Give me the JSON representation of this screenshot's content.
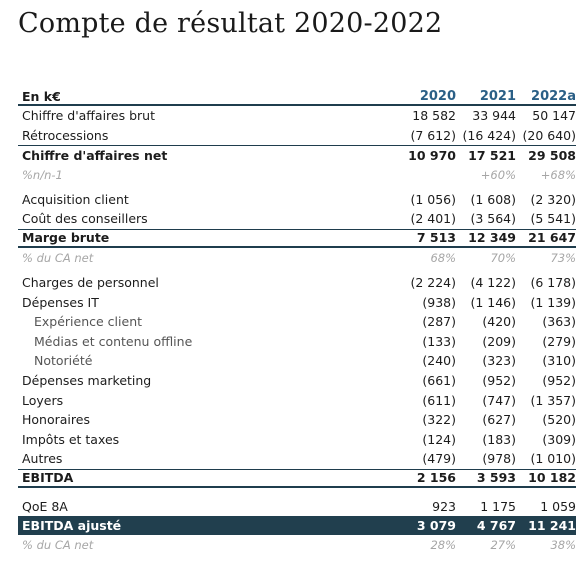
{
  "title": "Compte de résultat 2020-2022",
  "table": {
    "unit_label": "En k€",
    "years": [
      "2020",
      "2021",
      "2022a"
    ],
    "rows": {
      "ca_brut": {
        "label": "Chiffre d'affaires brut",
        "values": [
          "18 582",
          "33 944",
          "50 147"
        ]
      },
      "retro": {
        "label": "Rétrocessions",
        "values": [
          "(7 612)",
          "(16 424)",
          "(20 640)"
        ]
      },
      "ca_net": {
        "label": "Chiffre d'affaires net",
        "values": [
          "10 970",
          "17 521",
          "29 508"
        ]
      },
      "growth": {
        "label": "%n/n-1",
        "values": [
          "",
          "+60%",
          "+68%"
        ]
      },
      "acq": {
        "label": "Acquisition client",
        "values": [
          "(1 056)",
          "(1 608)",
          "(2 320)"
        ]
      },
      "cout_cons": {
        "label": "Coût des conseillers",
        "values": [
          "(2 401)",
          "(3 564)",
          "(5 541)"
        ]
      },
      "marge": {
        "label": "Marge brute",
        "values": [
          "7 513",
          "12 349",
          "21 647"
        ]
      },
      "marge_pct": {
        "label": "% du CA net",
        "values": [
          "68%",
          "70%",
          "73%"
        ]
      },
      "personnel": {
        "label": "Charges de personnel",
        "values": [
          "(2 224)",
          "(4 122)",
          "(6 178)"
        ]
      },
      "it": {
        "label": "Dépenses IT",
        "values": [
          "(938)",
          "(1 146)",
          "(1 139)"
        ]
      },
      "exp_client": {
        "label": "Expérience client",
        "values": [
          "(287)",
          "(420)",
          "(363)"
        ]
      },
      "medias": {
        "label": "Médias et contenu offline",
        "values": [
          "(133)",
          "(209)",
          "(279)"
        ]
      },
      "notoriete": {
        "label": "Notoriété",
        "values": [
          "(240)",
          "(323)",
          "(310)"
        ]
      },
      "marketing": {
        "label": "Dépenses marketing",
        "values": [
          "(661)",
          "(952)",
          "(952)"
        ]
      },
      "loyers": {
        "label": "Loyers",
        "values": [
          "(611)",
          "(747)",
          "(1 357)"
        ]
      },
      "honoraires": {
        "label": "Honoraires",
        "values": [
          "(322)",
          "(627)",
          "(520)"
        ]
      },
      "impots": {
        "label": "Impôts et taxes",
        "values": [
          "(124)",
          "(183)",
          "(309)"
        ]
      },
      "autres": {
        "label": "Autres",
        "values": [
          "(479)",
          "(978)",
          "(1 010)"
        ]
      },
      "ebitda": {
        "label": "EBITDA",
        "values": [
          "2 156",
          "3 593",
          "10 182"
        ]
      },
      "qoe": {
        "label": "QoE 8A",
        "values": [
          "923",
          "1 175",
          "1 059"
        ]
      },
      "ebitda_adj": {
        "label": "EBITDA ajusté",
        "values": [
          "3 079",
          "4 767",
          "11 241"
        ]
      },
      "ebitda_pct": {
        "label": "% du CA net",
        "values": [
          "28%",
          "27%",
          "38%"
        ]
      }
    }
  }
}
